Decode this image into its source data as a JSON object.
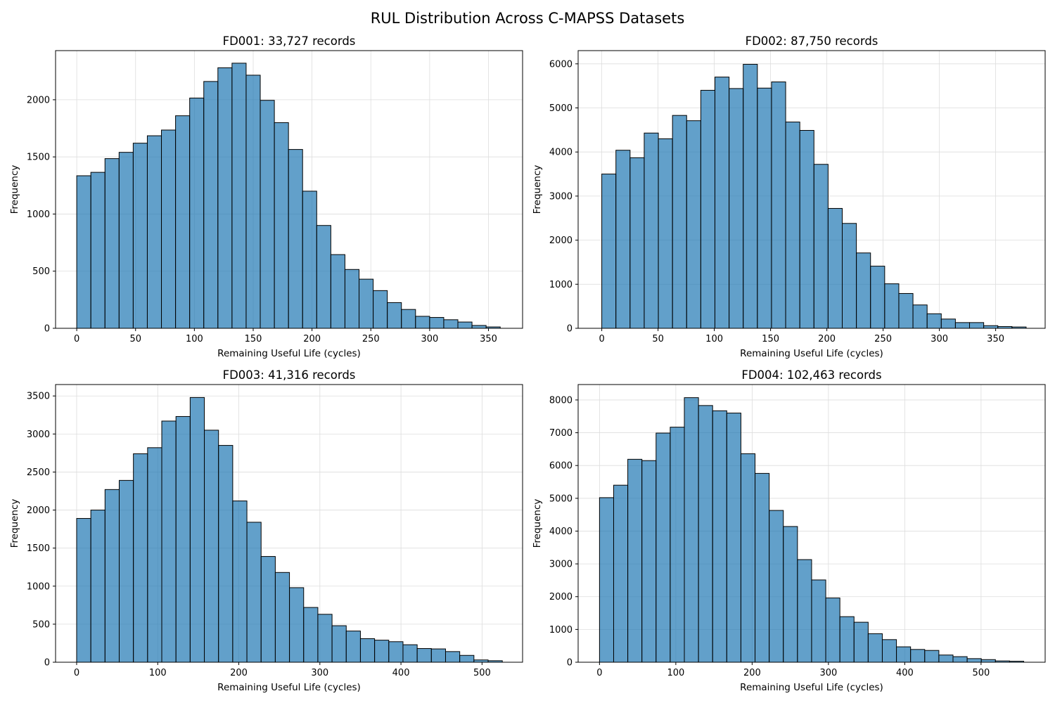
{
  "figure": {
    "suptitle": "RUL Distribution Across C-MAPSS Datasets"
  },
  "colors": {
    "bar_fill": "#1f77b4",
    "bar_alpha": 0.7,
    "bar_edge": "#000000",
    "grid": "#dddddd"
  },
  "chart_data": [
    {
      "type": "bar",
      "title": "FD001: 33,727 records",
      "xlabel": "Remaining Useful Life (cycles)",
      "ylabel": "Frequency",
      "grid": true,
      "xlim": [
        -18,
        379
      ],
      "ylim": [
        0,
        2430
      ],
      "xticks": [
        0,
        50,
        100,
        150,
        200,
        250,
        300,
        350
      ],
      "yticks": [
        0,
        500,
        1000,
        1500,
        2000
      ],
      "bin_start": 0,
      "bin_width": 12,
      "values": [
        1335,
        1365,
        1485,
        1540,
        1620,
        1685,
        1735,
        1860,
        2015,
        2160,
        2280,
        2320,
        2215,
        1995,
        1800,
        1565,
        1200,
        900,
        645,
        515,
        430,
        330,
        225,
        165,
        105,
        95,
        75,
        55,
        25,
        12
      ]
    },
    {
      "type": "bar",
      "title": "FD002: 87,750 records",
      "xlabel": "Remaining Useful Life (cycles)",
      "ylabel": "Frequency",
      "grid": true,
      "xlim": [
        -21,
        394
      ],
      "ylim": [
        0,
        6300
      ],
      "xticks": [
        0,
        50,
        100,
        150,
        200,
        250,
        300,
        350
      ],
      "yticks": [
        0,
        1000,
        2000,
        3000,
        4000,
        5000,
        6000
      ],
      "bin_start": 0,
      "bin_width": 12.57,
      "values": [
        3500,
        4040,
        3870,
        4430,
        4300,
        4830,
        4710,
        5400,
        5700,
        5440,
        5990,
        5450,
        5590,
        4680,
        4490,
        3720,
        2720,
        2380,
        1710,
        1410,
        1010,
        790,
        530,
        330,
        210,
        130,
        130,
        60,
        40,
        30
      ]
    },
    {
      "type": "bar",
      "title": "FD003: 41,316 records",
      "xlabel": "Remaining Useful Life (cycles)",
      "ylabel": "Frequency",
      "grid": true,
      "xlim": [
        -26,
        550
      ],
      "ylim": [
        0,
        3650
      ],
      "xticks": [
        0,
        100,
        200,
        300,
        400,
        500
      ],
      "yticks": [
        0,
        500,
        1000,
        1500,
        2000,
        2500,
        3000,
        3500
      ],
      "bin_start": 0,
      "bin_width": 17.5,
      "values": [
        1890,
        2000,
        2270,
        2390,
        2740,
        2820,
        3170,
        3230,
        3480,
        3050,
        2850,
        2120,
        1840,
        1390,
        1180,
        980,
        720,
        630,
        480,
        410,
        310,
        290,
        270,
        230,
        180,
        175,
        140,
        90,
        30,
        20
      ]
    },
    {
      "type": "bar",
      "title": "FD004: 102,463 records",
      "xlabel": "Remaining Useful Life (cycles)",
      "ylabel": "Frequency",
      "grid": true,
      "xlim": [
        -28,
        584
      ],
      "ylim": [
        0,
        8470
      ],
      "xticks": [
        0,
        100,
        200,
        300,
        400,
        500
      ],
      "yticks": [
        0,
        1000,
        2000,
        3000,
        4000,
        5000,
        6000,
        7000,
        8000
      ],
      "bin_start": 0,
      "bin_width": 18.53,
      "values": [
        5020,
        5400,
        6190,
        6150,
        6990,
        7170,
        8070,
        7830,
        7670,
        7600,
        6360,
        5760,
        4630,
        4140,
        3130,
        2510,
        1960,
        1390,
        1220,
        870,
        690,
        470,
        390,
        360,
        220,
        170,
        110,
        80,
        40,
        30
      ]
    }
  ]
}
